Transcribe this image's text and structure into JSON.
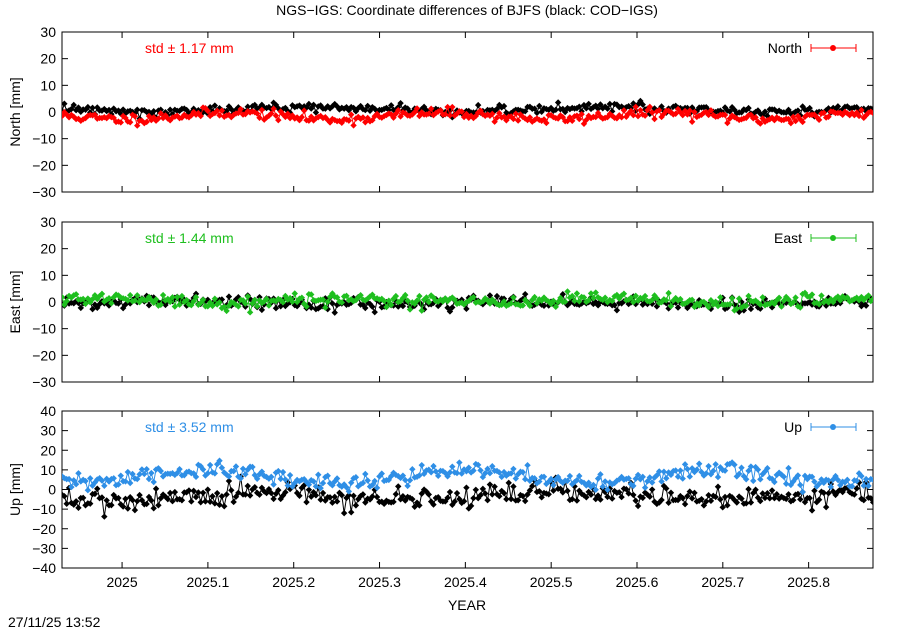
{
  "figure": {
    "title": "NGS−IGS: Coordinate differences of BJFS (black: COD−IGS)",
    "timestamp": "27/11/25 13:52"
  },
  "colors": {
    "north": "#ff0000",
    "east": "#1fbf1f",
    "up": "#2f8fe6",
    "reference": "#000000"
  },
  "chart_data": [
    {
      "type": "line",
      "panel": "north",
      "ylabel": "North [mm]",
      "xlim": [
        2024.93,
        2025.875
      ],
      "ylim": [
        -30,
        30
      ],
      "yticks": [
        30,
        20,
        10,
        0,
        -10,
        -20,
        -30
      ],
      "xticks": [
        2025,
        2025.1,
        2025.2,
        2025.3,
        2025.4,
        2025.5,
        2025.6,
        2025.7,
        2025.8
      ],
      "xticklabels": [],
      "legend": "top-right",
      "annotation": "std ± 1.17 mm",
      "series": [
        {
          "name": "North",
          "color": "#ff0000",
          "mean": -1.5,
          "amplitude": 1.2,
          "period": 0.25,
          "noise": 1.0,
          "seed": 11,
          "values_note": ""
        },
        {
          "color": "#000000",
          "mean": 1.0,
          "amplitude": 0.8,
          "period": 0.35,
          "noise": 0.9,
          "seed": 12
        }
      ]
    },
    {
      "type": "line",
      "panel": "east",
      "ylabel": "East [mm]",
      "xlim": [
        2024.93,
        2025.875
      ],
      "ylim": [
        -30,
        30
      ],
      "yticks": [
        30,
        20,
        10,
        0,
        -10,
        -20,
        -30
      ],
      "xticks": [
        2025,
        2025.1,
        2025.2,
        2025.3,
        2025.4,
        2025.5,
        2025.6,
        2025.7,
        2025.8
      ],
      "xticklabels": [],
      "legend": "top-right",
      "annotation": "std ± 1.44 mm",
      "series": [
        {
          "name": "East",
          "color": "#1fbf1f",
          "mean": 0.5,
          "amplitude": 0.8,
          "period": 0.3,
          "noise": 1.2,
          "seed": 21
        },
        {
          "color": "#000000",
          "mean": -0.3,
          "amplitude": 0.6,
          "period": 0.4,
          "noise": 1.1,
          "seed": 22
        }
      ]
    },
    {
      "type": "line",
      "panel": "up",
      "ylabel": "Up [mm]",
      "xlabel": "YEAR",
      "xlim": [
        2024.93,
        2025.875
      ],
      "ylim": [
        -40,
        40
      ],
      "yticks": [
        40,
        30,
        20,
        10,
        0,
        -10,
        -20,
        -30,
        -40
      ],
      "xticks": [
        2025,
        2025.1,
        2025.2,
        2025.3,
        2025.4,
        2025.5,
        2025.6,
        2025.7,
        2025.8
      ],
      "xticklabels": [
        "2025",
        "2025.1",
        "2025.2",
        "2025.3",
        "2025.4",
        "2025.5",
        "2025.6",
        "2025.7",
        "2025.8"
      ],
      "legend": "top-right",
      "annotation": "std ± 3.52 mm",
      "series": [
        {
          "name": "Up",
          "color": "#2f8fe6",
          "mean": 6.5,
          "amplitude": 3.0,
          "period": 0.3,
          "noise": 2.2,
          "seed": 31
        },
        {
          "color": "#000000",
          "mean": -3.5,
          "amplitude": 2.0,
          "period": 0.35,
          "noise": 3.0,
          "seed": 32
        }
      ]
    }
  ]
}
